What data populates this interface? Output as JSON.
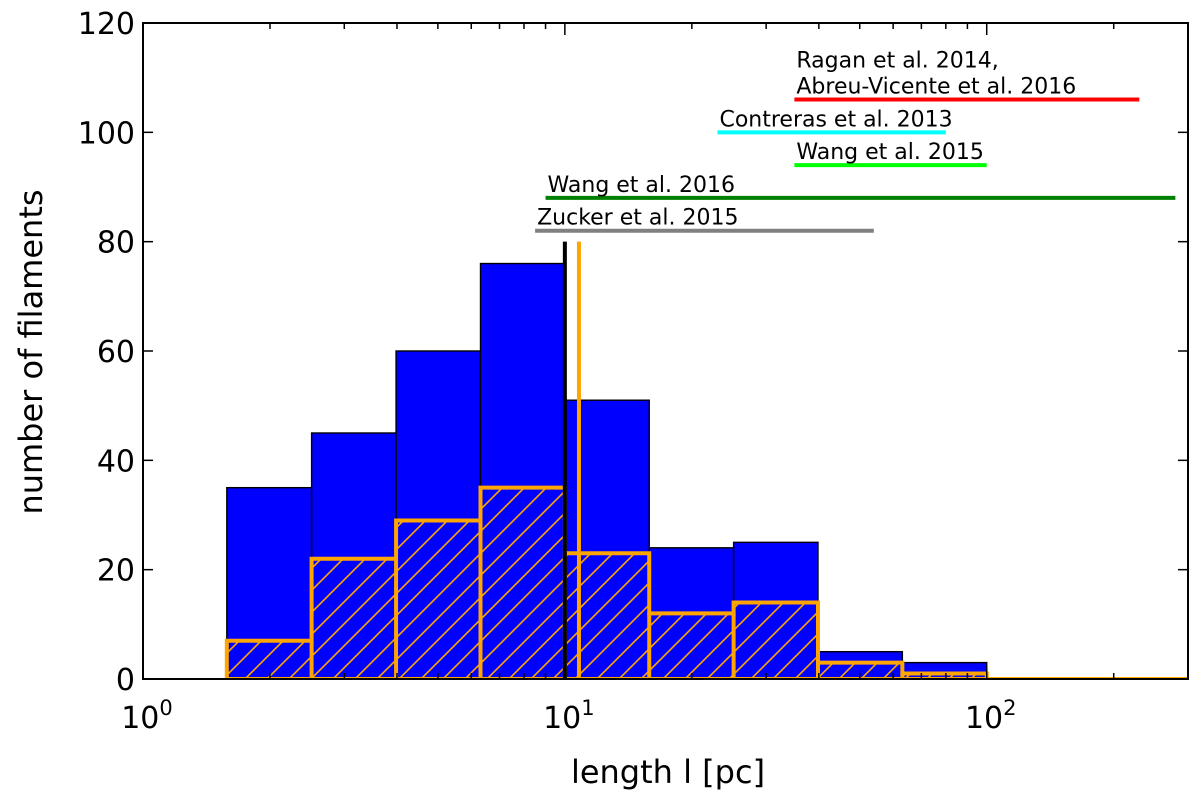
{
  "chart_data": {
    "type": "bar",
    "xlabel": "length l [pc]",
    "ylabel": "number of filaments",
    "xscale": "log",
    "xlim": [
      1,
      300
    ],
    "ylim": [
      0,
      120
    ],
    "x_ticks": [
      {
        "value": 1,
        "base": "10",
        "exp": "0"
      },
      {
        "value": 10,
        "base": "10",
        "exp": "1"
      },
      {
        "value": 100,
        "base": "10",
        "exp": "2"
      }
    ],
    "y_ticks": [
      {
        "value": 0,
        "label": "0"
      },
      {
        "value": 20,
        "label": "20"
      },
      {
        "value": 40,
        "label": "40"
      },
      {
        "value": 60,
        "label": "60"
      },
      {
        "value": 80,
        "label": "80"
      },
      {
        "value": 100,
        "label": "100"
      },
      {
        "value": 120,
        "label": "120"
      }
    ],
    "bin_edges": [
      1.58,
      2.51,
      3.98,
      6.31,
      10.0,
      15.85,
      25.12,
      39.81,
      63.1,
      100.0,
      158.5,
      251.2
    ],
    "series": [
      {
        "style": "filled",
        "color": "#0000ff",
        "values": [
          35,
          45,
          60,
          76,
          51,
          24,
          25,
          5,
          3,
          0,
          0
        ]
      },
      {
        "style": "hatched-outline",
        "color": "#ffa500",
        "values": [
          7,
          22,
          29,
          35,
          23,
          12,
          14,
          3,
          1,
          0,
          0
        ]
      }
    ],
    "vertical_lines": [
      {
        "x": 10.0,
        "color": "#000000"
      },
      {
        "x": 10.8,
        "color": "#ffa500"
      }
    ],
    "reference_ranges": [
      {
        "label_lines": [
          "Ragan et al. 2014,",
          "Abreu-Vicente et al. 2016"
        ],
        "x_start": 35,
        "x_end": 230,
        "y": 106,
        "color": "#ff0000"
      },
      {
        "label_lines": [
          "Contreras et al. 2013"
        ],
        "x_start": 23,
        "x_end": 80,
        "y": 100,
        "color": "#00ffff"
      },
      {
        "label_lines": [
          "Wang et al. 2015"
        ],
        "x_start": 35,
        "x_end": 100,
        "y": 94,
        "color": "#00ff00"
      },
      {
        "label_lines": [
          "Wang et al. 2016"
        ],
        "x_start": 9,
        "x_end": 280,
        "y": 88,
        "color": "#008000"
      },
      {
        "label_lines": [
          "Zucker et al. 2015"
        ],
        "x_start": 8.5,
        "x_end": 54,
        "y": 82,
        "color": "#808080"
      }
    ]
  }
}
